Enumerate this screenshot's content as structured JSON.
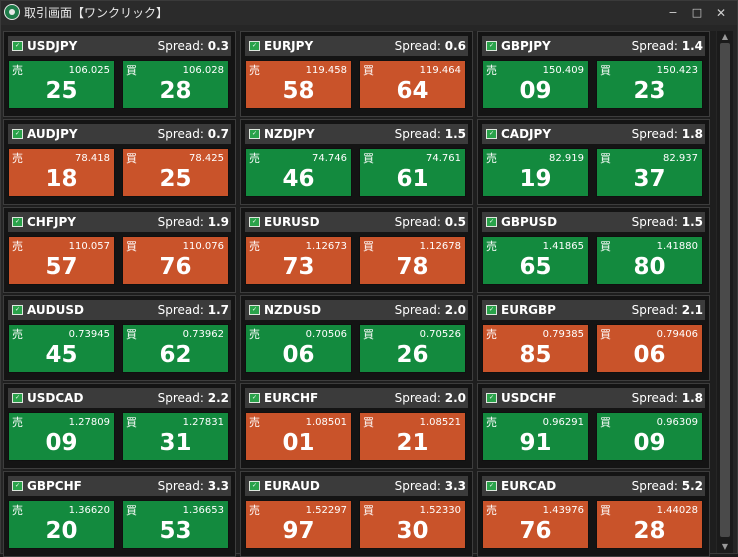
{
  "window": {
    "title": "取引画面【ワンクリック】",
    "icon": "app-logo-icon",
    "controls": {
      "minimize": "−",
      "maximize": "□",
      "close": "✕"
    }
  },
  "labels": {
    "spread": "Spread:",
    "sell": "売",
    "buy": "買"
  },
  "colors": {
    "green": "#138a3e",
    "orange": "#c9532a",
    "header": "#3b3b3b",
    "background": "#1e1e1e"
  },
  "panels": [
    {
      "pair": "USDJPY",
      "spread": "0.3",
      "sell": {
        "price": "106.025",
        "big": "25",
        "color": "green"
      },
      "buy": {
        "price": "106.028",
        "big": "28",
        "color": "green"
      }
    },
    {
      "pair": "EURJPY",
      "spread": "0.6",
      "sell": {
        "price": "119.458",
        "big": "58",
        "color": "orange"
      },
      "buy": {
        "price": "119.464",
        "big": "64",
        "color": "orange"
      }
    },
    {
      "pair": "GBPJPY",
      "spread": "1.4",
      "sell": {
        "price": "150.409",
        "big": "09",
        "color": "green"
      },
      "buy": {
        "price": "150.423",
        "big": "23",
        "color": "green"
      }
    },
    {
      "pair": "AUDJPY",
      "spread": "0.7",
      "sell": {
        "price": "78.418",
        "big": "18",
        "color": "orange"
      },
      "buy": {
        "price": "78.425",
        "big": "25",
        "color": "orange"
      }
    },
    {
      "pair": "NZDJPY",
      "spread": "1.5",
      "sell": {
        "price": "74.746",
        "big": "46",
        "color": "green"
      },
      "buy": {
        "price": "74.761",
        "big": "61",
        "color": "green"
      }
    },
    {
      "pair": "CADJPY",
      "spread": "1.8",
      "sell": {
        "price": "82.919",
        "big": "19",
        "color": "green"
      },
      "buy": {
        "price": "82.937",
        "big": "37",
        "color": "green"
      }
    },
    {
      "pair": "CHFJPY",
      "spread": "1.9",
      "sell": {
        "price": "110.057",
        "big": "57",
        "color": "orange"
      },
      "buy": {
        "price": "110.076",
        "big": "76",
        "color": "orange"
      }
    },
    {
      "pair": "EURUSD",
      "spread": "0.5",
      "sell": {
        "price": "1.12673",
        "big": "73",
        "color": "orange"
      },
      "buy": {
        "price": "1.12678",
        "big": "78",
        "color": "orange"
      }
    },
    {
      "pair": "GBPUSD",
      "spread": "1.5",
      "sell": {
        "price": "1.41865",
        "big": "65",
        "color": "green"
      },
      "buy": {
        "price": "1.41880",
        "big": "80",
        "color": "green"
      }
    },
    {
      "pair": "AUDUSD",
      "spread": "1.7",
      "sell": {
        "price": "0.73945",
        "big": "45",
        "color": "green"
      },
      "buy": {
        "price": "0.73962",
        "big": "62",
        "color": "green"
      }
    },
    {
      "pair": "NZDUSD",
      "spread": "2.0",
      "sell": {
        "price": "0.70506",
        "big": "06",
        "color": "green"
      },
      "buy": {
        "price": "0.70526",
        "big": "26",
        "color": "green"
      }
    },
    {
      "pair": "EURGBP",
      "spread": "2.1",
      "sell": {
        "price": "0.79385",
        "big": "85",
        "color": "orange"
      },
      "buy": {
        "price": "0.79406",
        "big": "06",
        "color": "orange"
      }
    },
    {
      "pair": "USDCAD",
      "spread": "2.2",
      "sell": {
        "price": "1.27809",
        "big": "09",
        "color": "green"
      },
      "buy": {
        "price": "1.27831",
        "big": "31",
        "color": "green"
      }
    },
    {
      "pair": "EURCHF",
      "spread": "2.0",
      "sell": {
        "price": "1.08501",
        "big": "01",
        "color": "orange"
      },
      "buy": {
        "price": "1.08521",
        "big": "21",
        "color": "orange"
      }
    },
    {
      "pair": "USDCHF",
      "spread": "1.8",
      "sell": {
        "price": "0.96291",
        "big": "91",
        "color": "green"
      },
      "buy": {
        "price": "0.96309",
        "big": "09",
        "color": "green"
      }
    },
    {
      "pair": "GBPCHF",
      "spread": "3.3",
      "sell": {
        "price": "1.36620",
        "big": "20",
        "color": "green"
      },
      "buy": {
        "price": "1.36653",
        "big": "53",
        "color": "green"
      }
    },
    {
      "pair": "EURAUD",
      "spread": "3.3",
      "sell": {
        "price": "1.52297",
        "big": "97",
        "color": "orange"
      },
      "buy": {
        "price": "1.52330",
        "big": "30",
        "color": "orange"
      }
    },
    {
      "pair": "EURCAD",
      "spread": "5.2",
      "sell": {
        "price": "1.43976",
        "big": "76",
        "color": "orange"
      },
      "buy": {
        "price": "1.44028",
        "big": "28",
        "color": "orange"
      }
    }
  ]
}
